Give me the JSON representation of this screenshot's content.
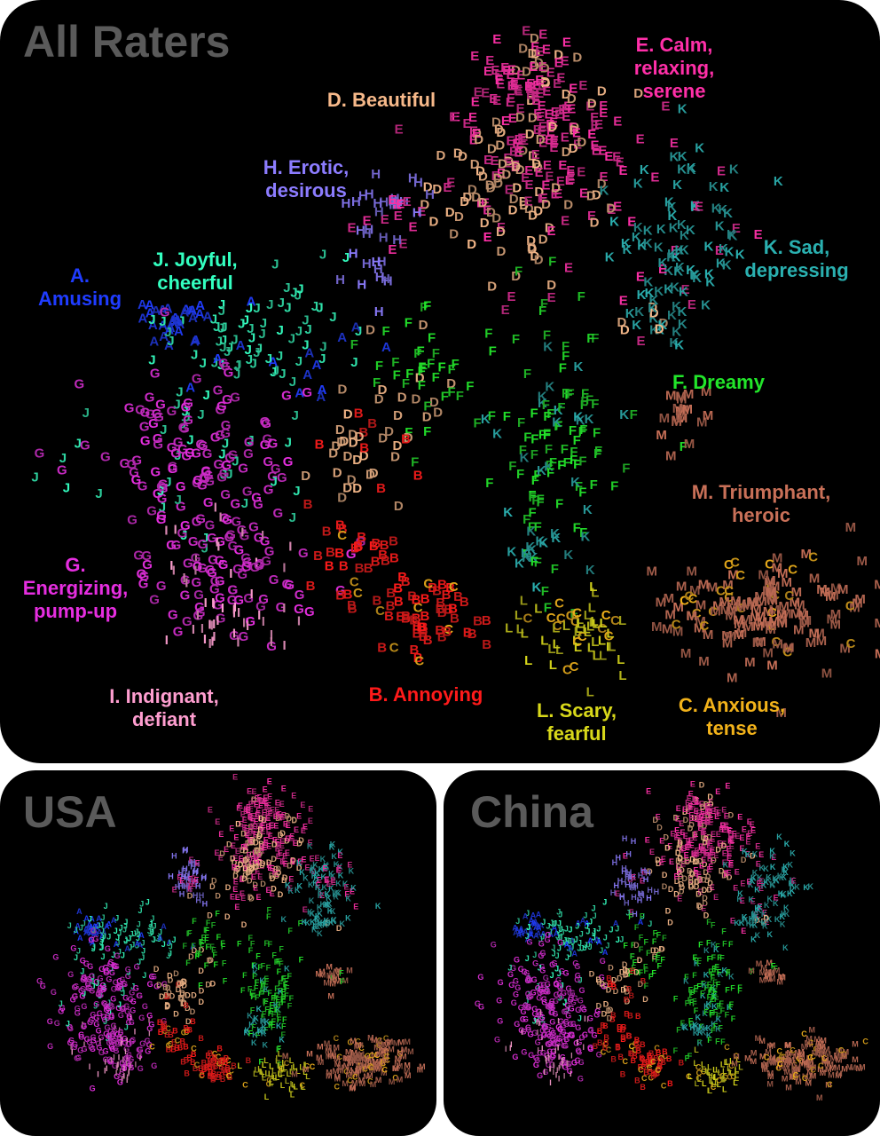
{
  "panels": {
    "all": {
      "title": "All Raters"
    },
    "usa": {
      "title": "USA"
    },
    "china": {
      "title": "China"
    }
  },
  "chart_data": {
    "type": "scatter",
    "description_marks": "letters",
    "clusters": [
      {
        "letter": "A",
        "name": "A.\nAmusing",
        "color": "#1f3cff"
      },
      {
        "letter": "B",
        "name": "B. Annoying",
        "color": "#ff1a1a"
      },
      {
        "letter": "C",
        "name": "C. Anxious,\ntense",
        "color": "#f2b21a"
      },
      {
        "letter": "D",
        "name": "D. Beautiful",
        "color": "#f7b98a"
      },
      {
        "letter": "E",
        "name": "E. Calm,\nrelaxing,\nserene",
        "color": "#ff2fa8"
      },
      {
        "letter": "F",
        "name": "F. Dreamy",
        "color": "#22e62a"
      },
      {
        "letter": "G",
        "name": "G.\nEnergizing,\npump-up",
        "color": "#e62ee0"
      },
      {
        "letter": "H",
        "name": "H. Erotic,\ndesirous",
        "color": "#8c7cff"
      },
      {
        "letter": "I",
        "name": "I. Indignant,\ndefiant",
        "color": "#ff9ed0"
      },
      {
        "letter": "J",
        "name": "J. Joyful,\ncheerful",
        "color": "#33ffc0"
      },
      {
        "letter": "K",
        "name": "K. Sad,\ndepressing",
        "color": "#2ab0b0"
      },
      {
        "letter": "L",
        "name": "L. Scary,\nfearful",
        "color": "#d8d81a"
      },
      {
        "letter": "M",
        "name": "M. Triumphant,\nheroic",
        "color": "#c97058"
      }
    ]
  }
}
